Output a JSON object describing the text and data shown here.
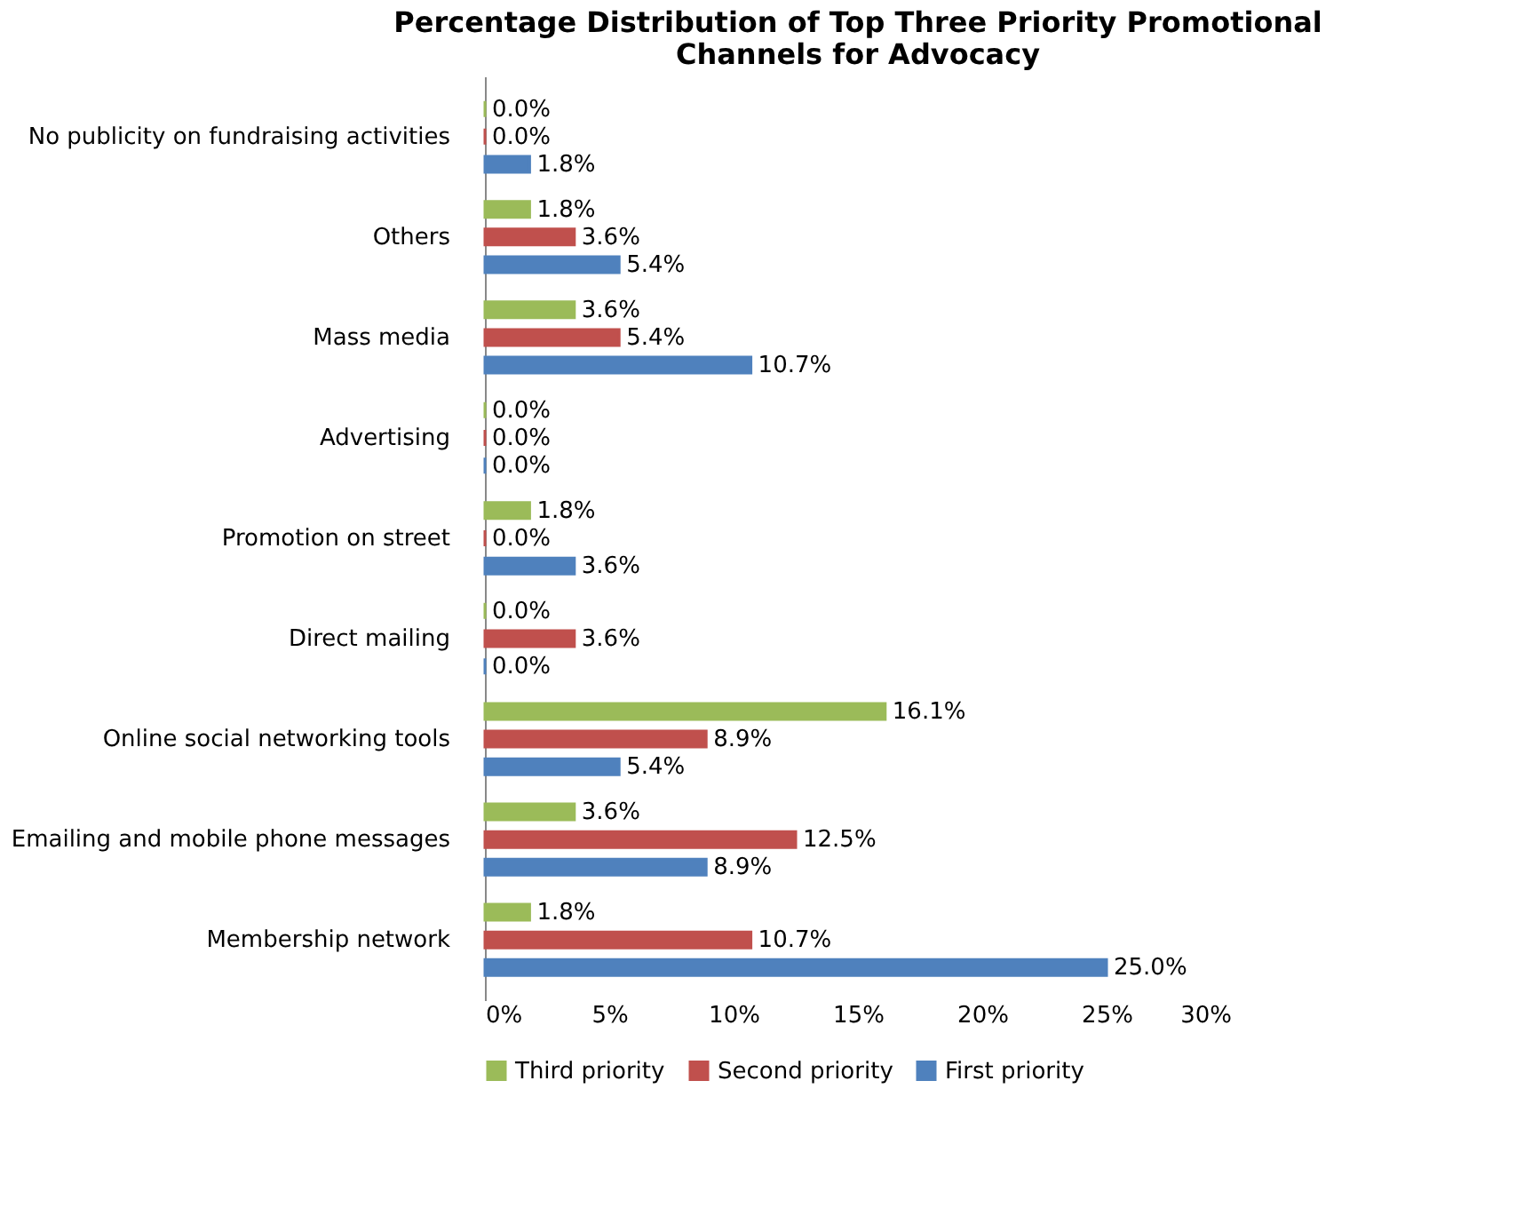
{
  "chart_data": {
    "type": "bar",
    "orientation": "horizontal",
    "title": "Percentage Distribution of Top Three Priority Promotional Channels for Advocacy",
    "categories": [
      "No publicity on fundraising activities",
      "Others",
      "Mass media",
      "Advertising",
      "Promotion on street",
      "Direct mailing",
      "Online social networking tools",
      "Emailing and mobile phone messages",
      "Membership network"
    ],
    "series": [
      {
        "name": "Third priority",
        "color": "#9bbb59",
        "values": [
          0.0,
          1.8,
          3.6,
          0.0,
          1.8,
          0.0,
          16.1,
          3.6,
          1.8
        ],
        "value_labels": [
          "0.0%",
          "1.8%",
          "3.6%",
          "0.0%",
          "1.8%",
          "0.0%",
          "16.1%",
          "3.6%",
          "1.8%"
        ]
      },
      {
        "name": "Second priority",
        "color": "#c0504d",
        "values": [
          0.0,
          3.6,
          5.4,
          0.0,
          0.0,
          3.6,
          8.9,
          12.5,
          10.7
        ],
        "value_labels": [
          "0.0%",
          "3.6%",
          "5.4%",
          "0.0%",
          "0.0%",
          "3.6%",
          "8.9%",
          "12.5%",
          "10.7%"
        ]
      },
      {
        "name": "First priority",
        "color": "#4f81bd",
        "values": [
          1.8,
          5.4,
          10.7,
          0.0,
          3.6,
          0.0,
          5.4,
          8.9,
          25.0
        ],
        "value_labels": [
          "1.8%",
          "5.4%",
          "10.7%",
          "0.0%",
          "3.6%",
          "0.0%",
          "5.4%",
          "8.9%",
          "25.0%"
        ]
      }
    ],
    "xlim": [
      0,
      30
    ],
    "xticks": [
      {
        "value": 0,
        "label": "0%"
      },
      {
        "value": 5,
        "label": "5%"
      },
      {
        "value": 10,
        "label": "10%"
      },
      {
        "value": 15,
        "label": "15%"
      },
      {
        "value": 20,
        "label": "20%"
      },
      {
        "value": 25,
        "label": "25%"
      },
      {
        "value": 30,
        "label": "30%"
      }
    ],
    "legend": "bottom",
    "grid": false
  }
}
